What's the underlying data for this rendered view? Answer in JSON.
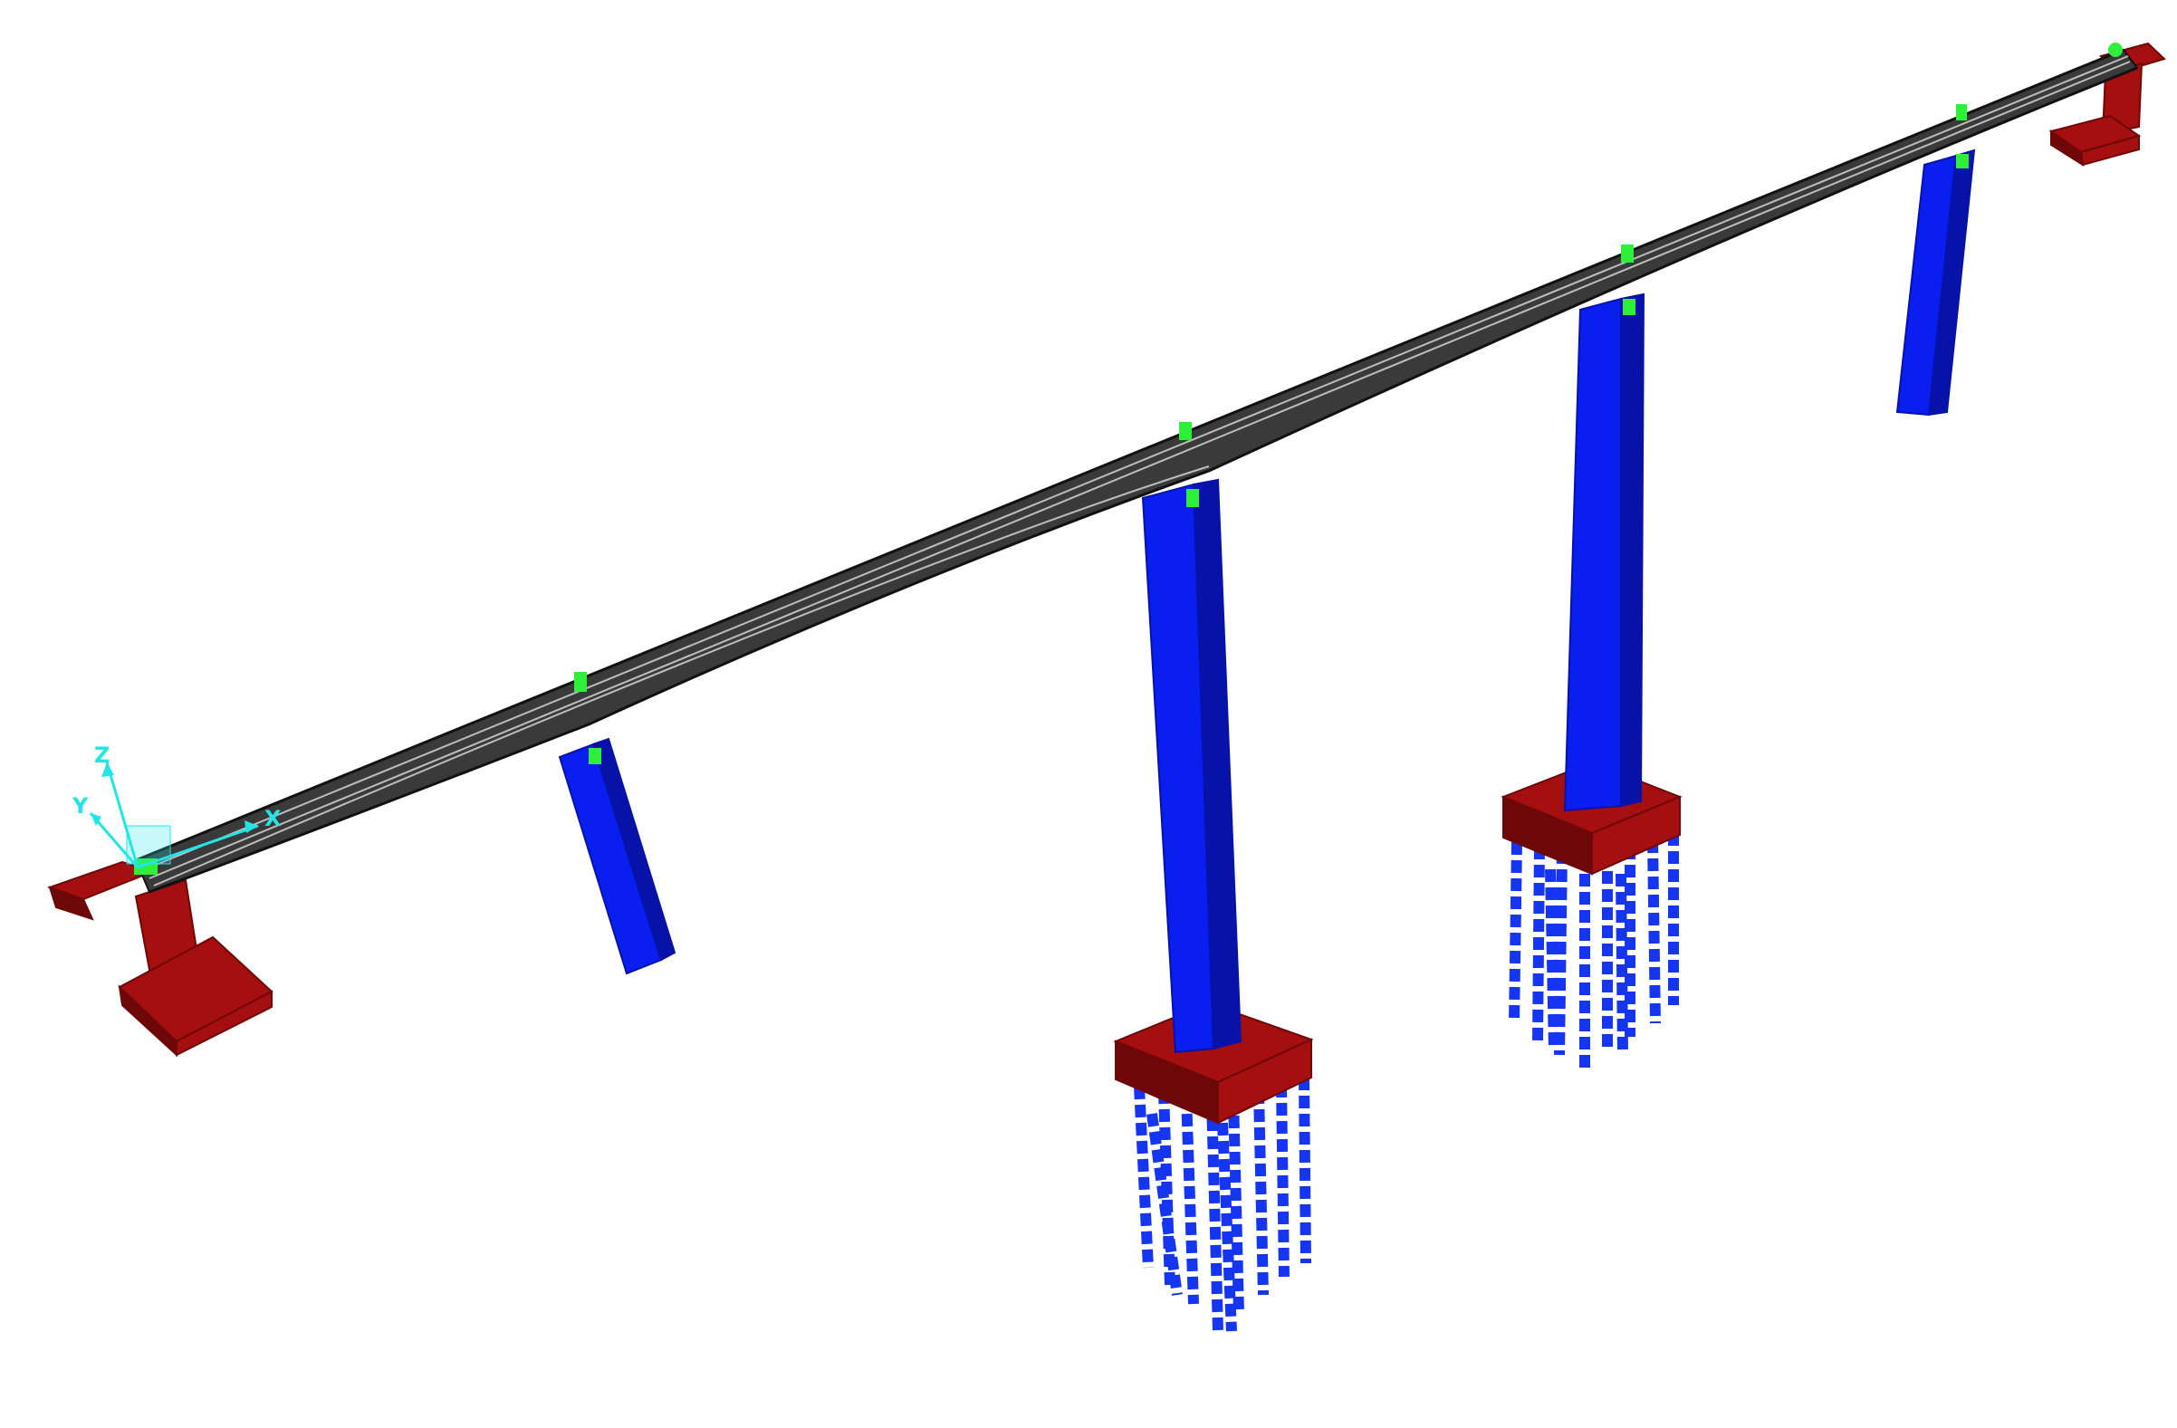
{
  "viewport": {
    "background": "#ffffff"
  },
  "colors": {
    "deck": "#3a3a3a",
    "deck_edge": "#111111",
    "deck_mesh": "#bdbdbd",
    "pier": "#0a1ef0",
    "pier_dark": "#0612a8",
    "foundation": "#a50f0f",
    "foundation_dark": "#6e0808",
    "pile": "#1535f0",
    "bearing": "#2ef03a",
    "axis": "#22e6e6"
  },
  "structure": {
    "deck_icon": "bridge-deck-shape",
    "pier_count": 4,
    "abutment_count": 2,
    "pile_groups": 2
  },
  "axes": {
    "x": "X",
    "y": "Y",
    "z": "Z"
  }
}
